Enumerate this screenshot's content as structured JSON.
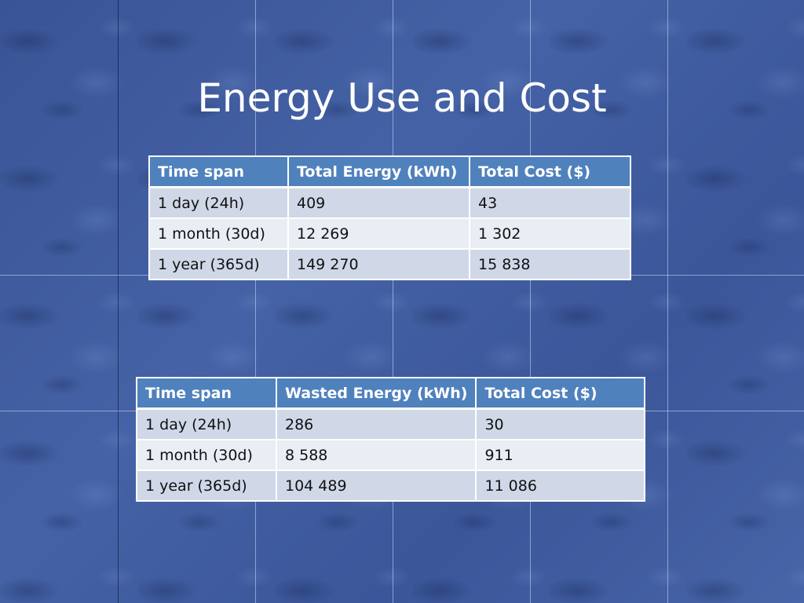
{
  "slide": {
    "title": "Energy Use and Cost"
  },
  "table1": {
    "headers": [
      "Time span",
      "Total Energy (kWh)",
      "Total Cost ($)"
    ],
    "rows": [
      [
        "1 day (24h)",
        "409",
        "43"
      ],
      [
        "1 month (30d)",
        "12 269",
        "1 302"
      ],
      [
        "1 year (365d)",
        "149 270",
        "15 838"
      ]
    ]
  },
  "table2": {
    "headers": [
      "Time span",
      "Wasted Energy (kWh)",
      "Total Cost ($)"
    ],
    "rows": [
      [
        "1 day (24h)",
        "286",
        "30"
      ],
      [
        "1 month (30d)",
        "8 588",
        "911"
      ],
      [
        "1 year (365d)",
        "104 489",
        "11 086"
      ]
    ]
  },
  "colors": {
    "header_bg": "#4f81bd",
    "row_odd": "#d0d8e8",
    "row_even": "#e9edf4",
    "background": "#3f5a9a"
  }
}
